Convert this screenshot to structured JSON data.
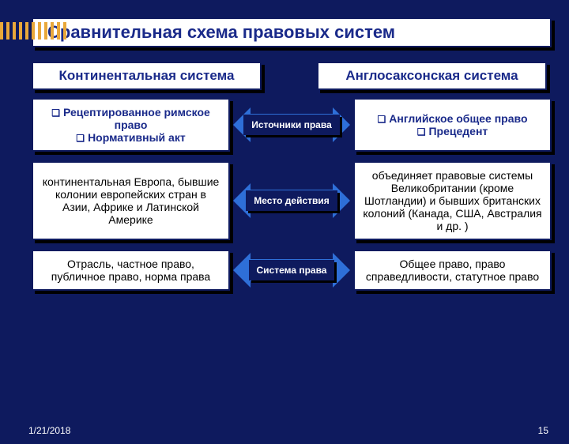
{
  "colors": {
    "bg": "#0e1a5e",
    "accent": "#e9a83a",
    "arrow": "#2e6fd8",
    "panel": "#ffffff",
    "text_dark": "#1a2a8a"
  },
  "title": "Сравнительная схема правовых систем",
  "headers": {
    "left": "Континентальная система",
    "right": "Англосаксонская система"
  },
  "rows": [
    {
      "left_bold": true,
      "left_bullets": [
        "Рецептированное римское право",
        "Нормативный акт"
      ],
      "mid": "Источники права",
      "right_bold": true,
      "right_bullets": [
        "Английское общее право",
        "Прецедент"
      ]
    },
    {
      "left_bold": false,
      "left_text": "континентальная Европа, бывшие колонии европейских стран в Азии, Африке и Латинской Америке",
      "mid": "Место действия",
      "right_bold": false,
      "right_text": "объединяет правовые системы Великобритании (кроме Шотландии) и бывших британских колоний (Канада, США, Австралия и др. )"
    },
    {
      "left_bold": false,
      "left_text": "Отрасль, частное право, публичное право, норма права",
      "mid": "Система права",
      "right_bold": false,
      "right_text": "Общее право, право справедливости, статутное право"
    }
  ],
  "footer": {
    "date": "1/21/2018",
    "page": "15"
  }
}
